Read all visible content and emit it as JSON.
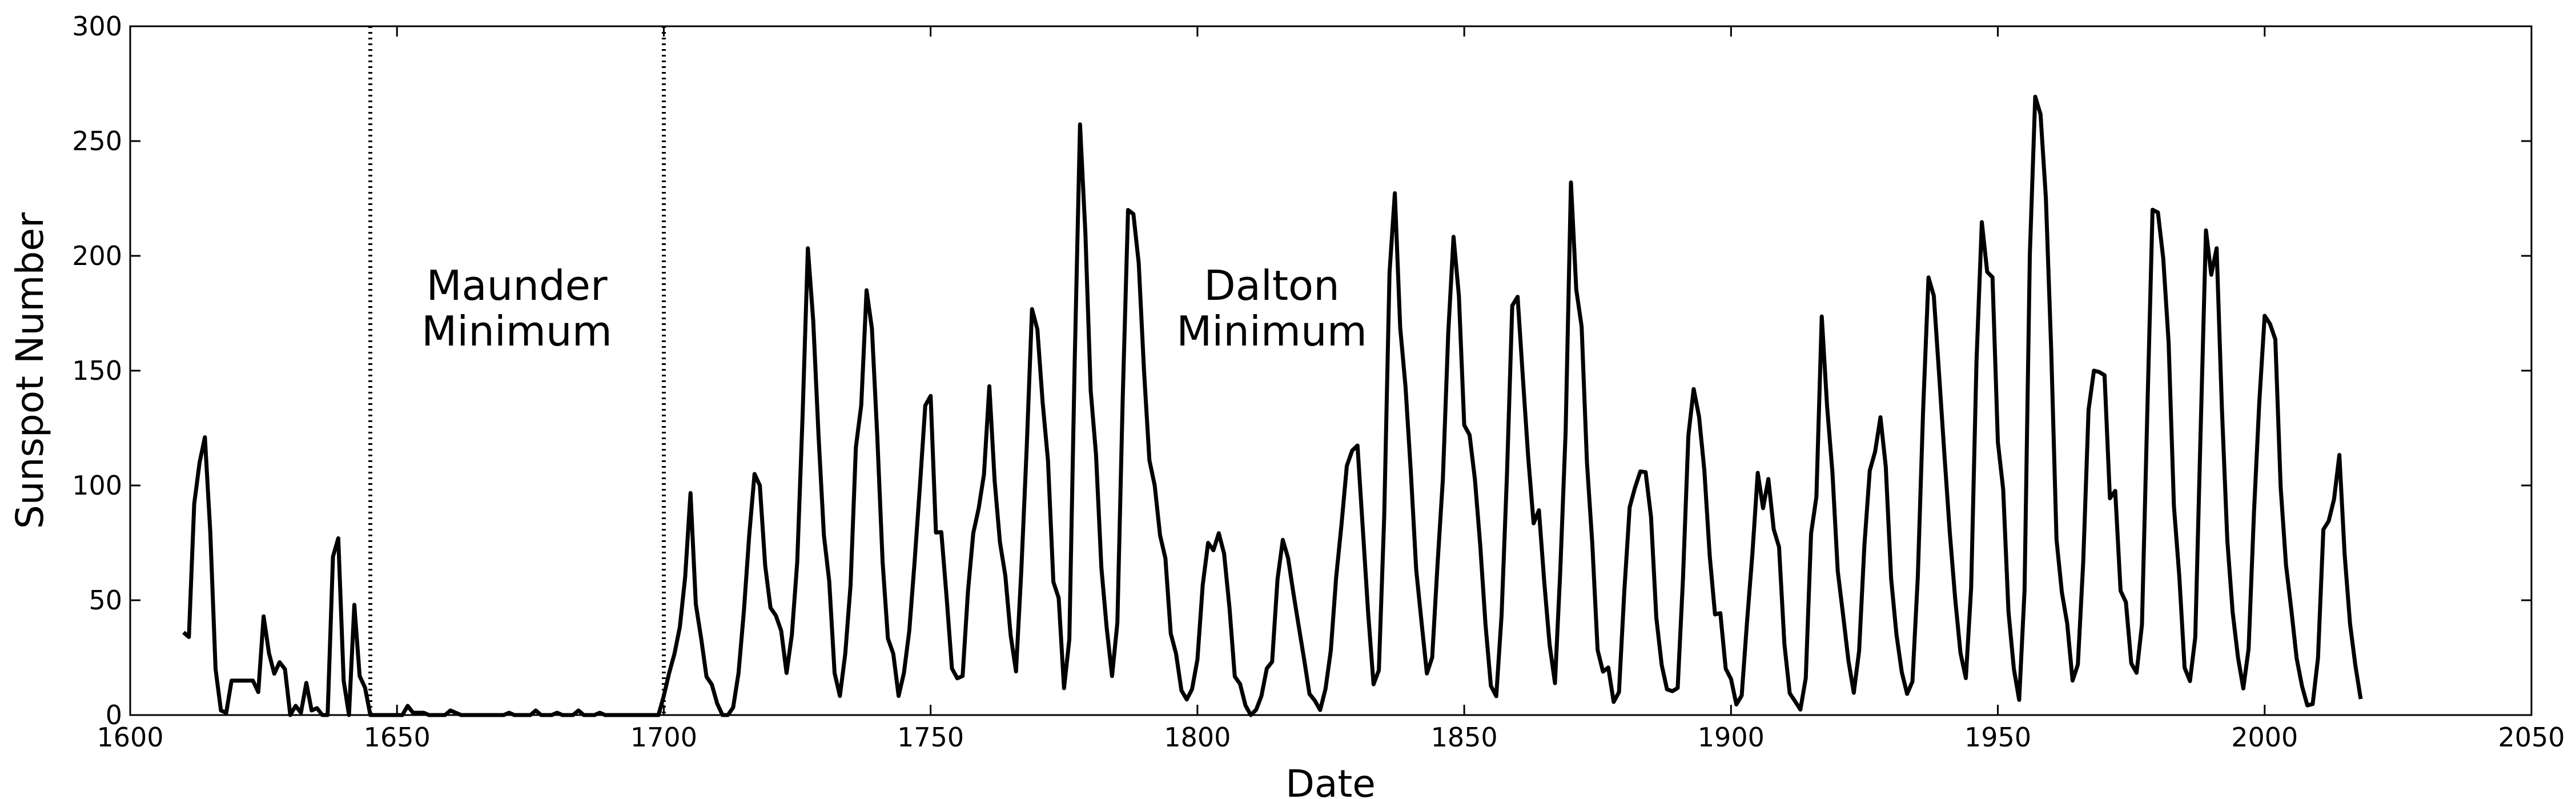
{
  "chart_data": {
    "type": "line",
    "xlabel": "Date",
    "ylabel": "Sunspot Number",
    "xlim": [
      1600,
      2050
    ],
    "xticks": [
      1600,
      1650,
      1700,
      1750,
      1800,
      1850,
      1900,
      1950,
      2000,
      2050
    ],
    "ylim": [
      0,
      300
    ],
    "yticks": [
      0,
      50,
      100,
      150,
      200,
      250,
      300
    ],
    "grid": false,
    "vlines": [
      1645,
      1700
    ],
    "annotations": [
      [
        "Maunder",
        "Minimum"
      ],
      [
        "Dalton",
        "Minimum"
      ]
    ],
    "x": [
      1610,
      1611,
      1612,
      1613,
      1614,
      1615,
      1616,
      1617,
      1618,
      1619,
      1620,
      1621,
      1622,
      1623,
      1624,
      1625,
      1626,
      1627,
      1628,
      1629,
      1630,
      1631,
      1632,
      1633,
      1634,
      1635,
      1636,
      1637,
      1638,
      1639,
      1640,
      1641,
      1642,
      1643,
      1644,
      1645,
      1646,
      1647,
      1648,
      1649,
      1650,
      1651,
      1652,
      1653,
      1654,
      1655,
      1656,
      1657,
      1658,
      1659,
      1660,
      1661,
      1662,
      1663,
      1664,
      1665,
      1666,
      1667,
      1668,
      1669,
      1670,
      1671,
      1672,
      1673,
      1674,
      1675,
      1676,
      1677,
      1678,
      1679,
      1680,
      1681,
      1682,
      1683,
      1684,
      1685,
      1686,
      1687,
      1688,
      1689,
      1690,
      1691,
      1692,
      1693,
      1694,
      1695,
      1696,
      1697,
      1698,
      1699,
      1700,
      1701,
      1702,
      1703,
      1704,
      1705,
      1706,
      1707,
      1708,
      1709,
      1710,
      1711,
      1712,
      1713,
      1714,
      1715,
      1716,
      1717,
      1718,
      1719,
      1720,
      1721,
      1722,
      1723,
      1724,
      1725,
      1726,
      1727,
      1728,
      1729,
      1730,
      1731,
      1732,
      1733,
      1734,
      1735,
      1736,
      1737,
      1738,
      1739,
      1740,
      1741,
      1742,
      1743,
      1744,
      1745,
      1746,
      1747,
      1748,
      1749,
      1750,
      1751,
      1752,
      1753,
      1754,
      1755,
      1756,
      1757,
      1758,
      1759,
      1760,
      1761,
      1762,
      1763,
      1764,
      1765,
      1766,
      1767,
      1768,
      1769,
      1770,
      1771,
      1772,
      1773,
      1774,
      1775,
      1776,
      1777,
      1778,
      1779,
      1780,
      1781,
      1782,
      1783,
      1784,
      1785,
      1786,
      1787,
      1788,
      1789,
      1790,
      1791,
      1792,
      1793,
      1794,
      1795,
      1796,
      1797,
      1798,
      1799,
      1800,
      1801,
      1802,
      1803,
      1804,
      1805,
      1806,
      1807,
      1808,
      1809,
      1810,
      1811,
      1812,
      1813,
      1814,
      1815,
      1816,
      1817,
      1818,
      1819,
      1820,
      1821,
      1822,
      1823,
      1824,
      1825,
      1826,
      1827,
      1828,
      1829,
      1830,
      1831,
      1832,
      1833,
      1834,
      1835,
      1836,
      1837,
      1838,
      1839,
      1840,
      1841,
      1842,
      1843,
      1844,
      1845,
      1846,
      1847,
      1848,
      1849,
      1850,
      1851,
      1852,
      1853,
      1854,
      1855,
      1856,
      1857,
      1858,
      1859,
      1860,
      1861,
      1862,
      1863,
      1864,
      1865,
      1866,
      1867,
      1868,
      1869,
      1870,
      1871,
      1872,
      1873,
      1874,
      1875,
      1876,
      1877,
      1878,
      1879,
      1880,
      1881,
      1882,
      1883,
      1884,
      1885,
      1886,
      1887,
      1888,
      1889,
      1890,
      1891,
      1892,
      1893,
      1894,
      1895,
      1896,
      1897,
      1898,
      1899,
      1900,
      1901,
      1902,
      1903,
      1904,
      1905,
      1906,
      1907,
      1908,
      1909,
      1910,
      1911,
      1912,
      1913,
      1914,
      1915,
      1916,
      1917,
      1918,
      1919,
      1920,
      1921,
      1922,
      1923,
      1924,
      1925,
      1926,
      1927,
      1928,
      1929,
      1930,
      1931,
      1932,
      1933,
      1934,
      1935,
      1936,
      1937,
      1938,
      1939,
      1940,
      1941,
      1942,
      1943,
      1944,
      1945,
      1946,
      1947,
      1948,
      1949,
      1950,
      1951,
      1952,
      1953,
      1954,
      1955,
      1956,
      1957,
      1958,
      1959,
      1960,
      1961,
      1962,
      1963,
      1964,
      1965,
      1966,
      1967,
      1968,
      1969,
      1970,
      1971,
      1972,
      1973,
      1974,
      1975,
      1976,
      1977,
      1978,
      1979,
      1980,
      1981,
      1982,
      1983,
      1984,
      1985,
      1986,
      1987,
      1988,
      1989,
      1990,
      1991,
      1992,
      1993,
      1994,
      1995,
      1996,
      1997,
      1998,
      1999,
      2000,
      2001,
      2002,
      2003,
      2004,
      2005,
      2006,
      2007,
      2008,
      2009,
      2010,
      2011,
      2012,
      2013,
      2014,
      2015,
      2016,
      2017,
      2018
    ],
    "series": [
      {
        "name": "Sunspot Number",
        "color": "#000000",
        "values": [
          36,
          34,
          92,
          110,
          121,
          80,
          20,
          2,
          1,
          15,
          15,
          15,
          15,
          15,
          10,
          43,
          27,
          18,
          23,
          20,
          0,
          4,
          1,
          14,
          2,
          3,
          0,
          0,
          69,
          77,
          15,
          0,
          48,
          17,
          12,
          0,
          0,
          0,
          0,
          0,
          0,
          0,
          4,
          1,
          1,
          1,
          0,
          0,
          0,
          0,
          2,
          1,
          0,
          0,
          0,
          0,
          0,
          0,
          0,
          0,
          0,
          1,
          0,
          0,
          0,
          0,
          2,
          0,
          0,
          0,
          1,
          0,
          0,
          0,
          2,
          0,
          0,
          0,
          1,
          0,
          0,
          0,
          0,
          0,
          0,
          0,
          0,
          0,
          0,
          0,
          8.3,
          18.3,
          26.7,
          38.3,
          60.0,
          96.7,
          48.3,
          33.3,
          16.7,
          13.3,
          5.0,
          0.0,
          0.0,
          3.3,
          18.3,
          45.0,
          78.3,
          105.0,
          100.0,
          65.0,
          46.7,
          43.3,
          36.7,
          18.3,
          35.0,
          66.7,
          130.0,
          203.3,
          171.7,
          121.7,
          78.3,
          58.3,
          18.3,
          8.3,
          26.7,
          56.7,
          116.7,
          135.0,
          185.0,
          168.3,
          121.7,
          66.7,
          33.3,
          26.7,
          8.3,
          18.3,
          36.7,
          66.7,
          100.0,
          134.8,
          139.0,
          79.5,
          79.7,
          51.2,
          20.3,
          16.0,
          17.0,
          54.0,
          79.3,
          90.0,
          104.8,
          143.2,
          102.0,
          75.2,
          60.7,
          34.8,
          19.0,
          63.0,
          116.3,
          176.8,
          168.0,
          136.0,
          110.8,
          58.0,
          51.0,
          11.7,
          33.0,
          154.2,
          257.3,
          209.8,
          141.3,
          113.5,
          64.2,
          38.0,
          17.0,
          40.2,
          138.2,
          220.0,
          218.2,
          196.8,
          149.8,
          111.0,
          100.0,
          78.2,
          68.3,
          35.5,
          26.7,
          10.7,
          6.8,
          11.3,
          24.2,
          56.7,
          75.0,
          71.8,
          79.2,
          70.3,
          46.8,
          16.8,
          13.5,
          4.2,
          0.0,
          2.3,
          8.3,
          20.3,
          23.2,
          59.0,
          76.3,
          68.3,
          52.9,
          38.5,
          24.2,
          9.2,
          6.3,
          2.2,
          11.4,
          28.2,
          59.9,
          83.0,
          108.5,
          115.2,
          117.4,
          80.8,
          44.3,
          13.4,
          19.5,
          85.8,
          192.7,
          227.3,
          168.7,
          143.0,
          105.5,
          63.3,
          40.3,
          18.1,
          25.1,
          65.8,
          102.7,
          166.3,
          208.3,
          182.5,
          126.3,
          122.0,
          102.7,
          74.1,
          39.0,
          12.7,
          8.2,
          43.4,
          104.4,
          178.3,
          182.2,
          146.6,
          112.1,
          83.5,
          89.2,
          57.8,
          30.7,
          13.9,
          62.8,
          123.6,
          232.0,
          185.3,
          169.2,
          110.1,
          74.5,
          28.3,
          18.9,
          20.7,
          5.7,
          10.0,
          53.7,
          90.5,
          99.0,
          106.1,
          105.8,
          86.3,
          42.4,
          21.8,
          11.2,
          10.4,
          11.8,
          59.5,
          121.7,
          142.0,
          130.0,
          106.6,
          69.4,
          43.8,
          44.4,
          20.2,
          15.7,
          4.6,
          8.5,
          40.8,
          70.1,
          105.5,
          90.1,
          102.8,
          80.9,
          73.2,
          30.9,
          9.5,
          6.0,
          2.4,
          16.1,
          79.0,
          95.0,
          173.6,
          134.6,
          105.7,
          62.7,
          43.5,
          23.7,
          9.7,
          27.9,
          74.0,
          106.5,
          114.7,
          129.7,
          108.2,
          59.4,
          35.1,
          18.6,
          9.2,
          14.6,
          60.2,
          132.8,
          190.6,
          182.6,
          148.0,
          113.0,
          79.2,
          50.8,
          27.1,
          16.1,
          55.3,
          154.3,
          214.7,
          193.0,
          190.7,
          118.9,
          98.3,
          45.0,
          20.1,
          6.6,
          54.2,
          200.7,
          269.3,
          261.7,
          225.1,
          159.0,
          76.4,
          53.4,
          39.9,
          15.0,
          22.0,
          66.8,
          132.9,
          150.0,
          149.4,
          148.0,
          94.4,
          97.6,
          54.1,
          49.2,
          22.5,
          18.4,
          39.3,
          131.0,
          220.1,
          218.9,
          198.9,
          162.4,
          91.0,
          60.5,
          20.6,
          14.8,
          33.9,
          123.0,
          211.1,
          191.8,
          203.3,
          133.0,
          76.1,
          44.9,
          25.1,
          11.6,
          28.9,
          88.3,
          136.3,
          173.9,
          170.4,
          163.6,
          99.3,
          65.3,
          45.8,
          24.7,
          12.6,
          4.2,
          4.8,
          24.9,
          80.8,
          84.5,
          94.0,
          113.3,
          69.8,
          39.8,
          21.7,
          7.0
        ]
      }
    ]
  }
}
